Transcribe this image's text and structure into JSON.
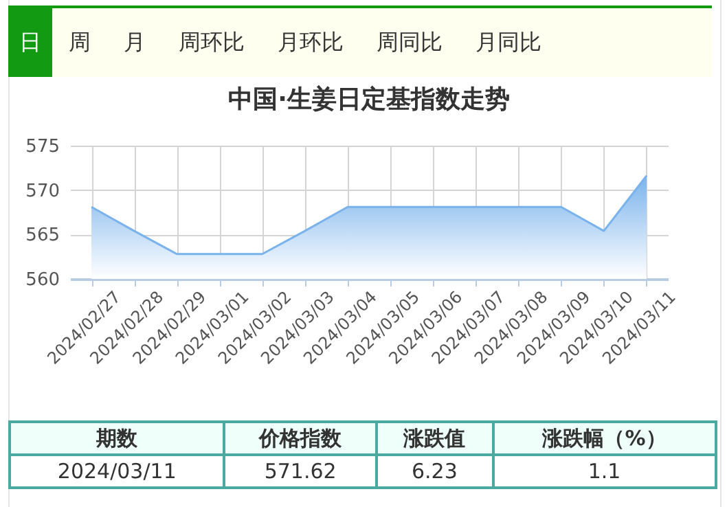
{
  "chart_data": {
    "type": "area",
    "title": "中国·生姜日定基指数走势",
    "categories": [
      "2024/02/27",
      "2024/02/28",
      "2024/02/29",
      "2024/03/01",
      "2024/03/02",
      "2024/03/03",
      "2024/03/04",
      "2024/03/05",
      "2024/03/06",
      "2024/03/07",
      "2024/03/08",
      "2024/03/09",
      "2024/03/10",
      "2024/03/11"
    ],
    "series": [
      {
        "color": "#7ab3ec",
        "values": [
          568.1,
          565.4,
          562.8,
          562.8,
          562.8,
          565.4,
          568.1,
          568.1,
          568.1,
          568.1,
          568.1,
          568.1,
          565.4,
          571.62
        ]
      }
    ],
    "ylim": [
      560,
      575
    ],
    "yticks": [
      560,
      565,
      570,
      575
    ],
    "grid": true,
    "marker": "none",
    "line_style": "solid",
    "annotations": [
      "日",
      "周",
      "月",
      "周环比",
      "月环比",
      "周同比",
      "月同比",
      "期数",
      "价格指数",
      "涨跌值",
      "涨跌幅（%）",
      "2024/03/11",
      "571.62",
      "6.23",
      "1.1"
    ]
  }
}
